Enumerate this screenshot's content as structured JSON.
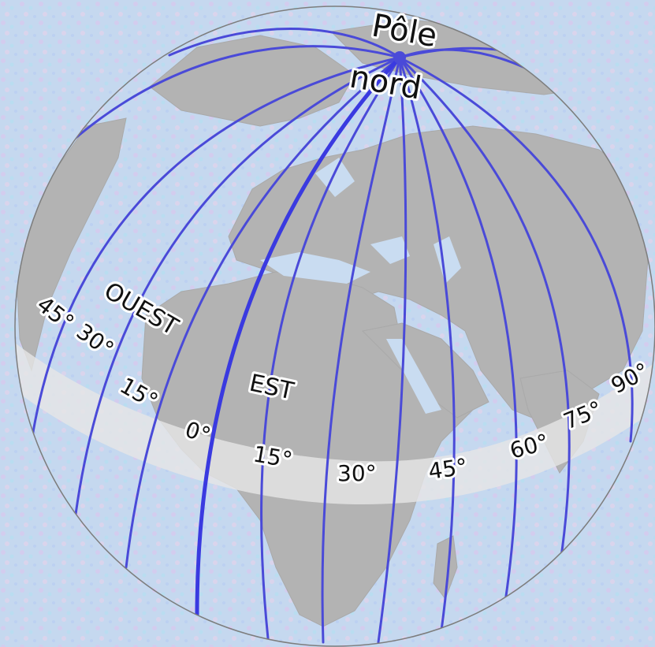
{
  "labels": {
    "pole_line1": "Pôle",
    "pole_line2": "nord",
    "west": "OUEST",
    "east": "EST"
  },
  "meridian_labels": [
    {
      "id": "w45",
      "text": "45°"
    },
    {
      "id": "w30",
      "text": "30°"
    },
    {
      "id": "w15",
      "text": "15°"
    },
    {
      "id": "m0",
      "text": "0°"
    },
    {
      "id": "e15",
      "text": "15°"
    },
    {
      "id": "e30",
      "text": "30°"
    },
    {
      "id": "e45",
      "text": "45°"
    },
    {
      "id": "e60",
      "text": "60°"
    },
    {
      "id": "e75",
      "text": "75°"
    },
    {
      "id": "e90",
      "text": "90°"
    }
  ],
  "colors": {
    "background": "#c5d8ef",
    "globe_water": "#c9dcf1",
    "land": "#b3b3b3",
    "meridian": "#4a4ad8",
    "prime_meridian": "#3a3ae0",
    "equator_band": "#e6e6e6"
  }
}
